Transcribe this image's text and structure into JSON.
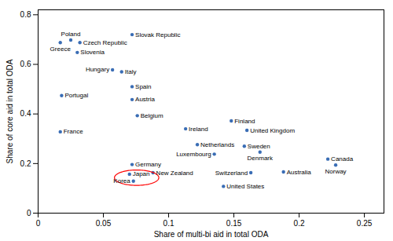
{
  "chart_data": {
    "type": "scatter",
    "xlabel": "Share of multi-bi aid in total ODA",
    "ylabel": "Share of core aid in total ODA",
    "labels": [
      "Slovak Republic",
      "Poland",
      "Greece",
      "Czech Republic",
      "Slovenia",
      "Hungary",
      "Italy",
      "Spain",
      "Portugal",
      "Austria",
      "Belgium",
      "Finland",
      "Ireland",
      "United Kingdom",
      "France",
      "Netherlands",
      "Sweden",
      "Denmark",
      "Luxembourg",
      "Canada",
      "Germany",
      "Norway",
      "New Zealand",
      "Australia",
      "Switzerland",
      "Japan",
      "Korea",
      "United States"
    ],
    "x": [
      0.072,
      0.025,
      0.017,
      0.032,
      0.03,
      0.057,
      0.064,
      0.072,
      0.018,
      0.072,
      0.076,
      0.148,
      0.113,
      0.16,
      0.017,
      0.122,
      0.158,
      0.17,
      0.135,
      0.222,
      0.072,
      0.228,
      0.088,
      0.188,
      0.163,
      0.07,
      0.073,
      0.142
    ],
    "values": [
      0.72,
      0.698,
      0.688,
      0.688,
      0.648,
      0.578,
      0.57,
      0.51,
      0.474,
      0.458,
      0.393,
      0.372,
      0.34,
      0.334,
      0.328,
      0.276,
      0.27,
      0.246,
      0.238,
      0.218,
      0.196,
      0.194,
      0.163,
      0.166,
      0.163,
      0.157,
      0.129,
      0.108
    ],
    "color": "#3a6db5",
    "xlim": [
      0,
      0.265
    ],
    "ylim": [
      0,
      0.82
    ],
    "xticks": [
      0,
      0.05,
      0.1,
      0.15,
      0.2,
      0.25
    ],
    "yticks": [
      0,
      0.2,
      0.4,
      0.6,
      0.8
    ],
    "annotations": [
      {
        "type": "ellipse",
        "x": 0.0755,
        "y": 0.143,
        "width": 0.034,
        "height": 0.062,
        "color": "red"
      }
    ]
  }
}
